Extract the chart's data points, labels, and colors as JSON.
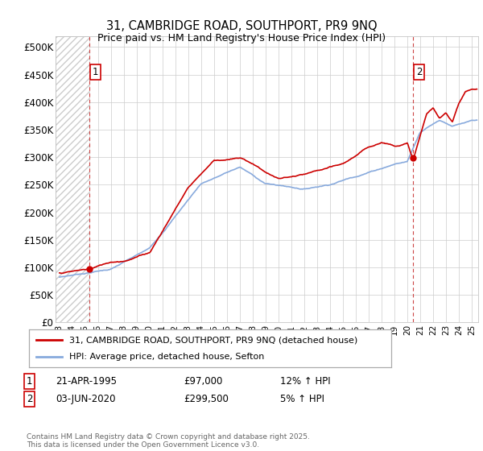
{
  "title": "31, CAMBRIDGE ROAD, SOUTHPORT, PR9 9NQ",
  "subtitle": "Price paid vs. HM Land Registry's House Price Index (HPI)",
  "ylabel_ticks": [
    "£0",
    "£50K",
    "£100K",
    "£150K",
    "£200K",
    "£250K",
    "£300K",
    "£350K",
    "£400K",
    "£450K",
    "£500K"
  ],
  "ytick_values": [
    0,
    50000,
    100000,
    150000,
    200000,
    250000,
    300000,
    350000,
    400000,
    450000,
    500000
  ],
  "ylim": [
    0,
    520000
  ],
  "xlim_start": 1992.7,
  "xlim_end": 2025.5,
  "xtick_years": [
    1993,
    1994,
    1995,
    1996,
    1997,
    1998,
    1999,
    2000,
    2001,
    2002,
    2003,
    2004,
    2005,
    2006,
    2007,
    2008,
    2009,
    2010,
    2011,
    2012,
    2013,
    2014,
    2015,
    2016,
    2017,
    2018,
    2019,
    2020,
    2021,
    2022,
    2023,
    2024,
    2025
  ],
  "transaction1_x": 1995.3,
  "transaction1_y": 97000,
  "transaction1_label": "1",
  "transaction2_x": 2020.42,
  "transaction2_y": 299500,
  "transaction2_label": "2",
  "legend_line1": "31, CAMBRIDGE ROAD, SOUTHPORT, PR9 9NQ (detached house)",
  "legend_line2": "HPI: Average price, detached house, Sefton",
  "annotation1_date": "21-APR-1995",
  "annotation1_price": "£97,000",
  "annotation1_hpi": "12% ↑ HPI",
  "annotation2_date": "03-JUN-2020",
  "annotation2_price": "£299,500",
  "annotation2_hpi": "5% ↑ HPI",
  "footer": "Contains HM Land Registry data © Crown copyright and database right 2025.\nThis data is licensed under the Open Government Licence v3.0.",
  "line_color_red": "#cc0000",
  "line_color_blue": "#88aadd",
  "grid_color": "#cccccc",
  "bg_color": "#ffffff",
  "vline_color": "#cc4444"
}
